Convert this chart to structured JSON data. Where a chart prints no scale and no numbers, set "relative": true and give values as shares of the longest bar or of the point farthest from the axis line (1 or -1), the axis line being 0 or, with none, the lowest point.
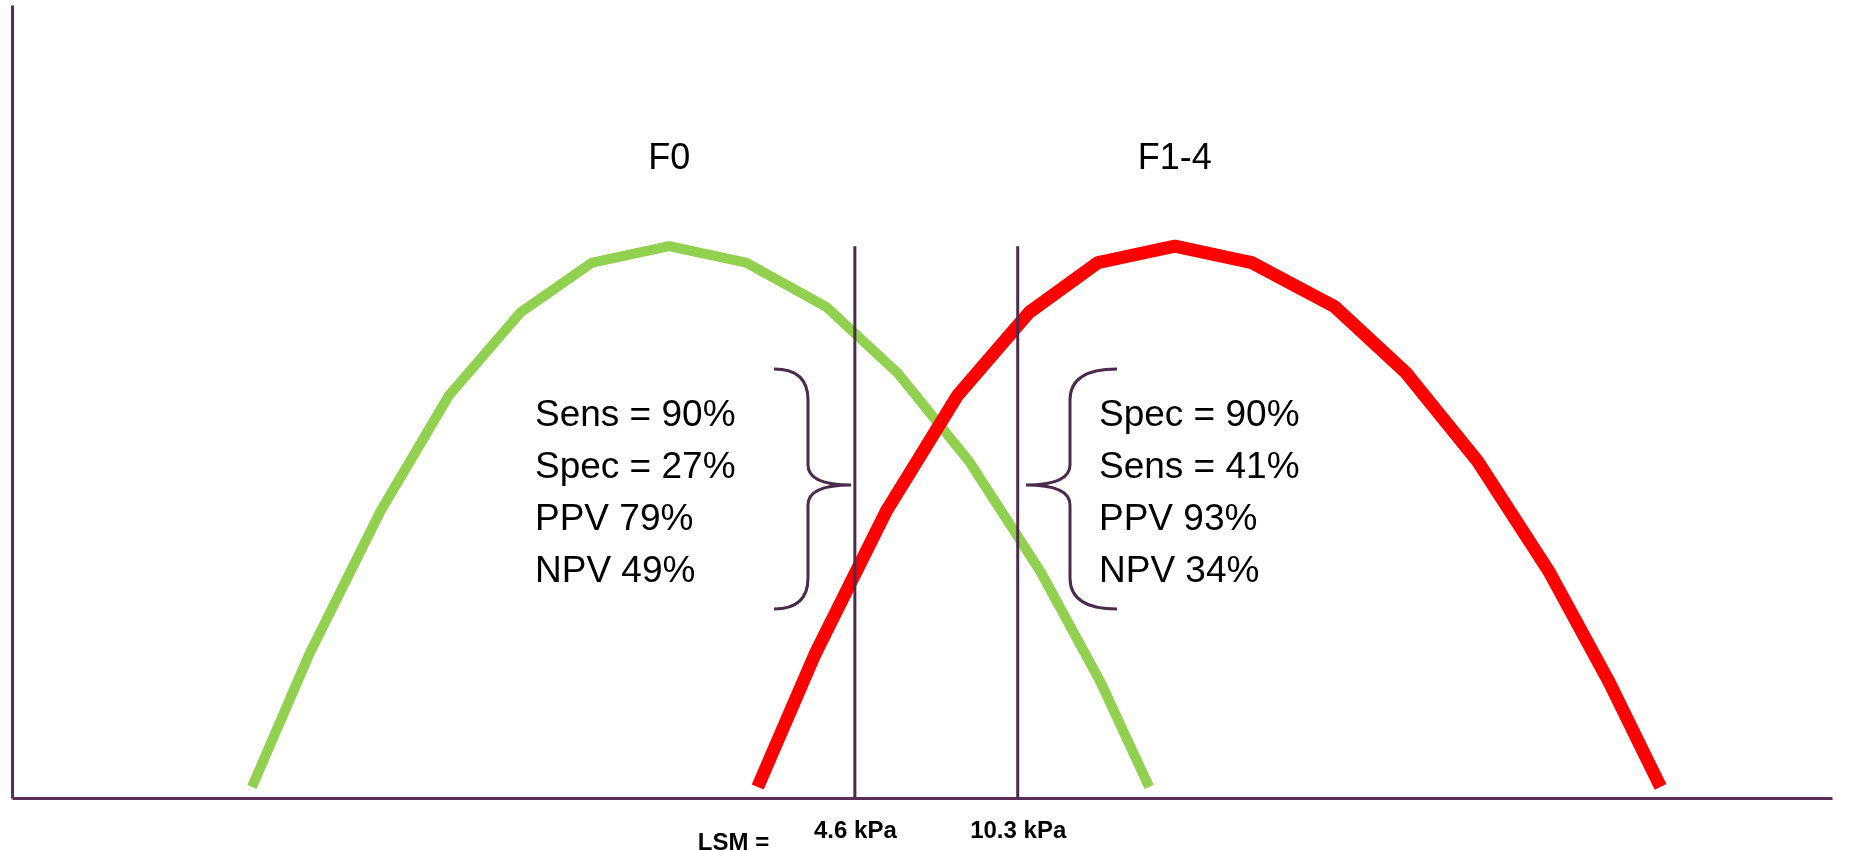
{
  "chart_data": {
    "type": "line",
    "relative": true,
    "xlabel": "LSM =",
    "xlim": [
      -24.9,
      38.8
    ],
    "xticks": [
      {
        "value": 4.6,
        "label": "4.6 kPa"
      },
      {
        "value": 10.3,
        "label": "10.3 kPa"
      }
    ],
    "tick_labels": "x",
    "series": [
      {
        "name": "F0",
        "color": "#92d050",
        "x": [
          -16.5,
          -14.5,
          -12.0,
          -9.6,
          -7.1,
          -4.6,
          -1.9,
          0.8,
          3.6,
          6.1,
          8.6,
          11.1,
          13.2,
          14.9
        ],
        "values": [
          0.02,
          0.26,
          0.52,
          0.73,
          0.88,
          0.97,
          1.0,
          0.97,
          0.89,
          0.77,
          0.61,
          0.41,
          0.21,
          0.02
        ]
      },
      {
        "name": "F1-4",
        "color": "#ff0000",
        "x": [
          1.2,
          3.2,
          5.7,
          8.2,
          10.7,
          13.1,
          15.8,
          18.5,
          21.4,
          23.9,
          26.4,
          28.9,
          31.0,
          32.8
        ],
        "values": [
          0.02,
          0.26,
          0.52,
          0.73,
          0.88,
          0.97,
          1.0,
          0.97,
          0.89,
          0.77,
          0.61,
          0.41,
          0.21,
          0.02
        ]
      }
    ],
    "ref_lines": [
      {
        "axis": "x",
        "value": 4.6,
        "color": "#4b2a4b"
      },
      {
        "axis": "x",
        "value": 10.3,
        "color": "#4b2a4b"
      }
    ],
    "annotations": [
      "Sens = 90%\nSpec = 27%\nPPV 79%\nNPV 49%",
      "Spec = 90%\nSens = 41%\nPPV 93%\nNPV 34%"
    ]
  }
}
